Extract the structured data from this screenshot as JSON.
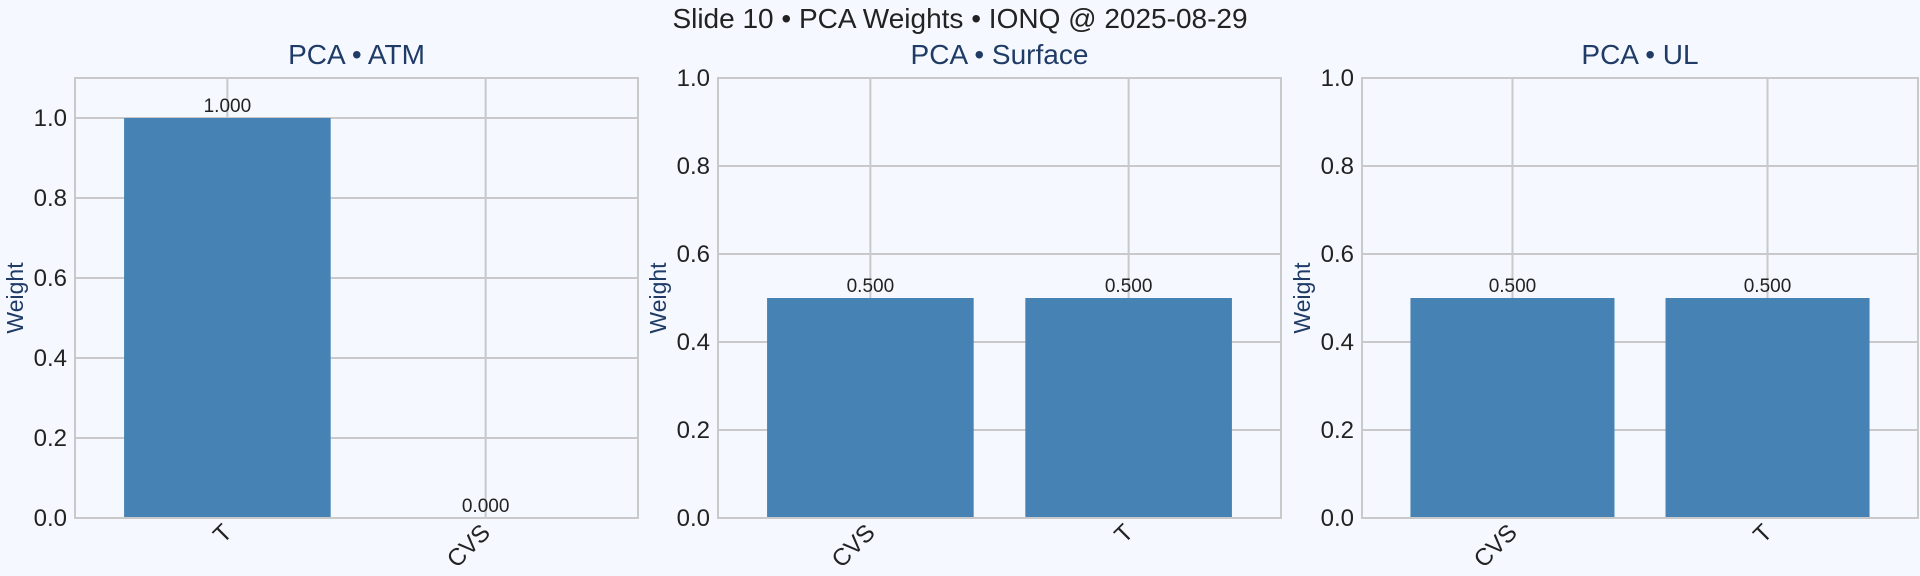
{
  "figure": {
    "title": "Slide 10 • PCA Weights • IONQ @ 2025-08-29"
  },
  "style": {
    "bar_color": "#4682b4",
    "panel_bg": "#f5f9ff",
    "grid_color": "#c9c9c9",
    "title_color": "#1f3b66"
  },
  "chart_data": [
    {
      "type": "bar",
      "title": "PCA • ATM",
      "ylabel": "Weight",
      "categories": [
        "T",
        "CVS"
      ],
      "values": [
        1.0,
        0.0
      ],
      "data_labels": [
        "1.000",
        "0.000"
      ],
      "ylim": [
        0,
        1.1
      ],
      "yticks": [
        0.0,
        0.2,
        0.4,
        0.6,
        0.8,
        1.0
      ],
      "ytick_labels": [
        "0.0",
        "0.2",
        "0.4",
        "0.6",
        "0.8",
        "1.0"
      ],
      "grid": true
    },
    {
      "type": "bar",
      "title": "PCA • Surface",
      "ylabel": "Weight",
      "categories": [
        "CVS",
        "T"
      ],
      "values": [
        0.5,
        0.5
      ],
      "data_labels": [
        "0.500",
        "0.500"
      ],
      "ylim": [
        0,
        1.0
      ],
      "yticks": [
        0.0,
        0.2,
        0.4,
        0.6,
        0.8,
        1.0
      ],
      "ytick_labels": [
        "0.0",
        "0.2",
        "0.4",
        "0.6",
        "0.8",
        "1.0"
      ],
      "grid": true
    },
    {
      "type": "bar",
      "title": "PCA • UL",
      "ylabel": "Weight",
      "categories": [
        "CVS",
        "T"
      ],
      "values": [
        0.5,
        0.5
      ],
      "data_labels": [
        "0.500",
        "0.500"
      ],
      "ylim": [
        0,
        1.0
      ],
      "yticks": [
        0.0,
        0.2,
        0.4,
        0.6,
        0.8,
        1.0
      ],
      "ytick_labels": [
        "0.0",
        "0.2",
        "0.4",
        "0.6",
        "0.8",
        "1.0"
      ],
      "grid": true
    }
  ]
}
